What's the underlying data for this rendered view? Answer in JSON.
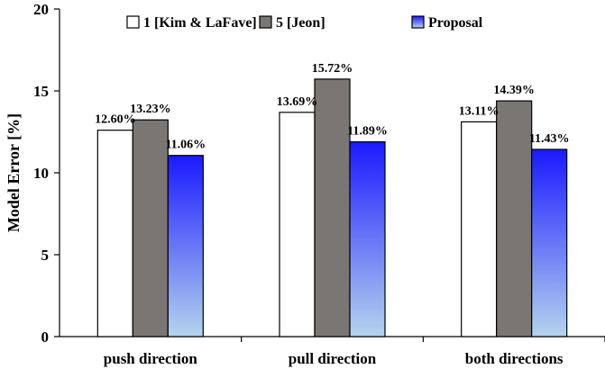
{
  "chart_data": {
    "type": "bar",
    "title": "",
    "xlabel": "",
    "ylabel": "Model Error [%]",
    "ylim": [
      0,
      20
    ],
    "yticks": [
      0,
      5,
      10,
      15,
      20
    ],
    "ytick_labels": [
      "0",
      "5",
      "10",
      "15",
      "20"
    ],
    "grid": false,
    "legend_position": "top",
    "categories": [
      "push direction",
      "pull direction",
      "both directions"
    ],
    "series": [
      {
        "name": "1 [Kim & LaFave]",
        "values": [
          12.6,
          13.69,
          13.11
        ],
        "labels": [
          "12.60%",
          "13.69%",
          "13.11%"
        ],
        "color": "#ffffff"
      },
      {
        "name": "5 [Jeon]",
        "values": [
          13.23,
          15.72,
          14.39
        ],
        "labels": [
          "13.23%",
          "15.72%",
          "14.39%"
        ],
        "color": "#7a7674"
      },
      {
        "name": "Proposal",
        "values": [
          11.06,
          11.89,
          11.43
        ],
        "labels": [
          "11.06%",
          "11.89%",
          "11.43%"
        ],
        "color": "#1a1aff",
        "gradient_end": "#b4d4ee"
      }
    ]
  }
}
